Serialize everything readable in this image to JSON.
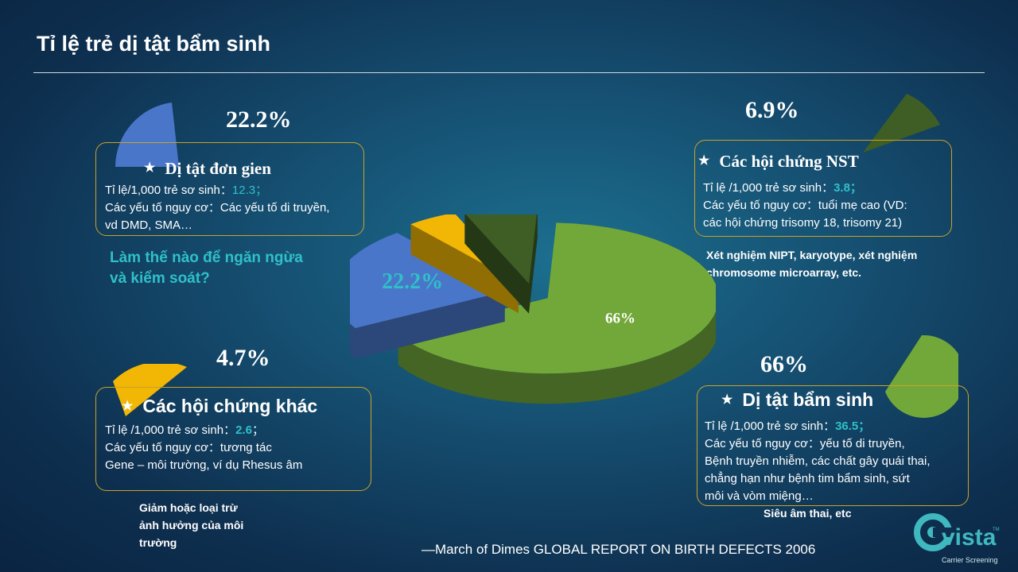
{
  "title": "Tỉ lệ trẻ dị tật bẩm sinh",
  "colors": {
    "blue": "#4a76c9",
    "yellow": "#f2b705",
    "dark_green": "#3e5e25",
    "green": "#72a83a",
    "teal": "#2fc0c8",
    "border": "#c9a227"
  },
  "boxes": {
    "single": {
      "pct": "22.2%",
      "title": "Dị tật đơn gien",
      "rate_label": "Tỉ lệ/1,000 trẻ sơ sinh：",
      "rate_value": "12.3；",
      "risk_label": "Các yếu tố nguy cơ：",
      "risk_value": "Các yếu tố di truyền,",
      "risk_cont": "vd DMD, SMA…",
      "question_1": "Làm thế nào để ngăn ngừa",
      "question_2": "và kiểm soát?"
    },
    "nst": {
      "pct": "6.9%",
      "title": "Các hội chứng NST",
      "rate_label": "Tỉ lệ /1,000 trẻ sơ sinh：",
      "rate_value": "3.8；",
      "risk_label": "Các yếu tố nguy cơ：",
      "risk_value": "tuổi mẹ cao (VD:",
      "risk_cont": "các hội chứng trisomy 18, trisomy 21)",
      "note_1": "Xét nghiệm NIPT, karyotype, xét nghiệm",
      "note_2": "chromosome microarray, etc."
    },
    "other": {
      "pct": "4.7%",
      "title": "Các hội chứng khác",
      "rate_label": "Tỉ lệ /1,000 trẻ sơ sinh：",
      "rate_value": "2.6",
      "rate_tail": "；",
      "risk_label": "Các yếu tố nguy cơ：",
      "risk_value": "tương tác",
      "risk_cont": "Gene – môi trường, ví dụ Rhesus âm",
      "note_1": "Giảm hoặc loại trừ",
      "note_2": "ảnh hưởng của môi",
      "note_3": "trường"
    },
    "congenital": {
      "pct": "66%",
      "title": "Dị tật bẩm sinh",
      "rate_label": "Tỉ lệ /1,000 trẻ sơ sinh：",
      "rate_value": "36.5；",
      "risk_label": "Các yếu tố nguy cơ：",
      "risk_value": "yếu tố di truyền,",
      "line_3": "Bệnh truyền nhiễm, các chất gây quái thai,",
      "line_4": "chẳng hạn như bệnh tim bẩm sinh, sứt",
      "line_5": "môi và vòm miệng…",
      "note": "Siêu âm thai, etc"
    }
  },
  "chart_data": {
    "type": "pie",
    "categories": [
      "Dị tật bẩm sinh",
      "Dị tật đơn gien",
      "Các hội chứng khác",
      "Các hội chứng NST"
    ],
    "values": [
      66,
      22.2,
      4.7,
      6.9
    ],
    "labels": [
      "66%",
      "22.2%",
      "4.7%",
      "6.9%"
    ],
    "colors": [
      "#72a83a",
      "#4a76c9",
      "#f2b705",
      "#3e5e25"
    ]
  },
  "source": "—March of Dimes GLOBAL REPORT ON BIRTH DEFECTS 2006",
  "logo": {
    "name": "vista",
    "tm": "TM",
    "tagline": "Carrier Screening"
  }
}
